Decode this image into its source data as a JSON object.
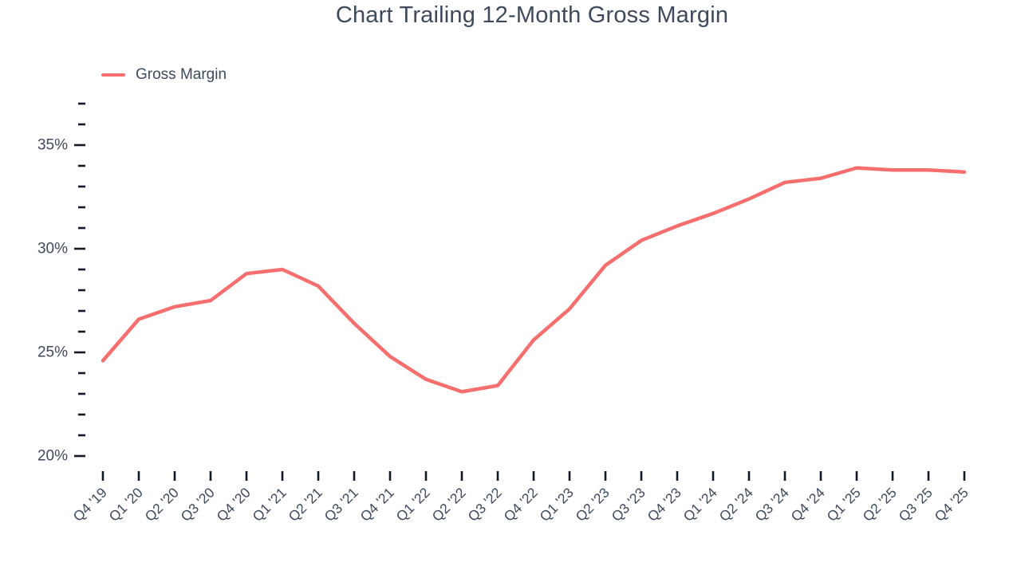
{
  "title": "Chart Trailing 12-Month Gross Margin",
  "legend": {
    "label": "Gross Margin"
  },
  "colors": {
    "line": "#f66e6e",
    "title_text": "#3e4a5c",
    "axis_text": "#3e4a5c",
    "tick": "#111827",
    "background": "#ffffff"
  },
  "chart_data": {
    "type": "line",
    "title": "Chart Trailing 12-Month Gross Margin",
    "categories": [
      "Q4 '19",
      "Q1 '20",
      "Q2 '20",
      "Q3 '20",
      "Q4 '20",
      "Q1 '21",
      "Q2 '21",
      "Q3 '21",
      "Q4 '21",
      "Q1 '22",
      "Q2 '22",
      "Q3 '22",
      "Q4 '22",
      "Q1 '23",
      "Q2 '23",
      "Q3 '23",
      "Q4 '23",
      "Q1 '24",
      "Q2 '24",
      "Q3 '24",
      "Q4 '24",
      "Q1 '25",
      "Q2 '25",
      "Q3 '25",
      "Q4 '25"
    ],
    "series": [
      {
        "name": "Gross Margin",
        "values": [
          24.6,
          26.6,
          27.2,
          27.5,
          28.8,
          29.0,
          28.2,
          26.4,
          24.8,
          23.7,
          23.1,
          23.4,
          25.6,
          27.1,
          29.2,
          30.4,
          31.1,
          31.7,
          32.4,
          33.2,
          33.4,
          33.9,
          33.8,
          33.8,
          33.7
        ]
      }
    ],
    "xlabel": "",
    "ylabel": "",
    "y_axis": {
      "unit": "%",
      "range": [
        20,
        37
      ],
      "major_ticks": [
        20,
        25,
        30,
        35
      ],
      "major_tick_labels": [
        "20%",
        "25%",
        "30%",
        "35%"
      ],
      "minor_tick_step": 1
    },
    "grid": false,
    "legend_position": "top-left"
  }
}
